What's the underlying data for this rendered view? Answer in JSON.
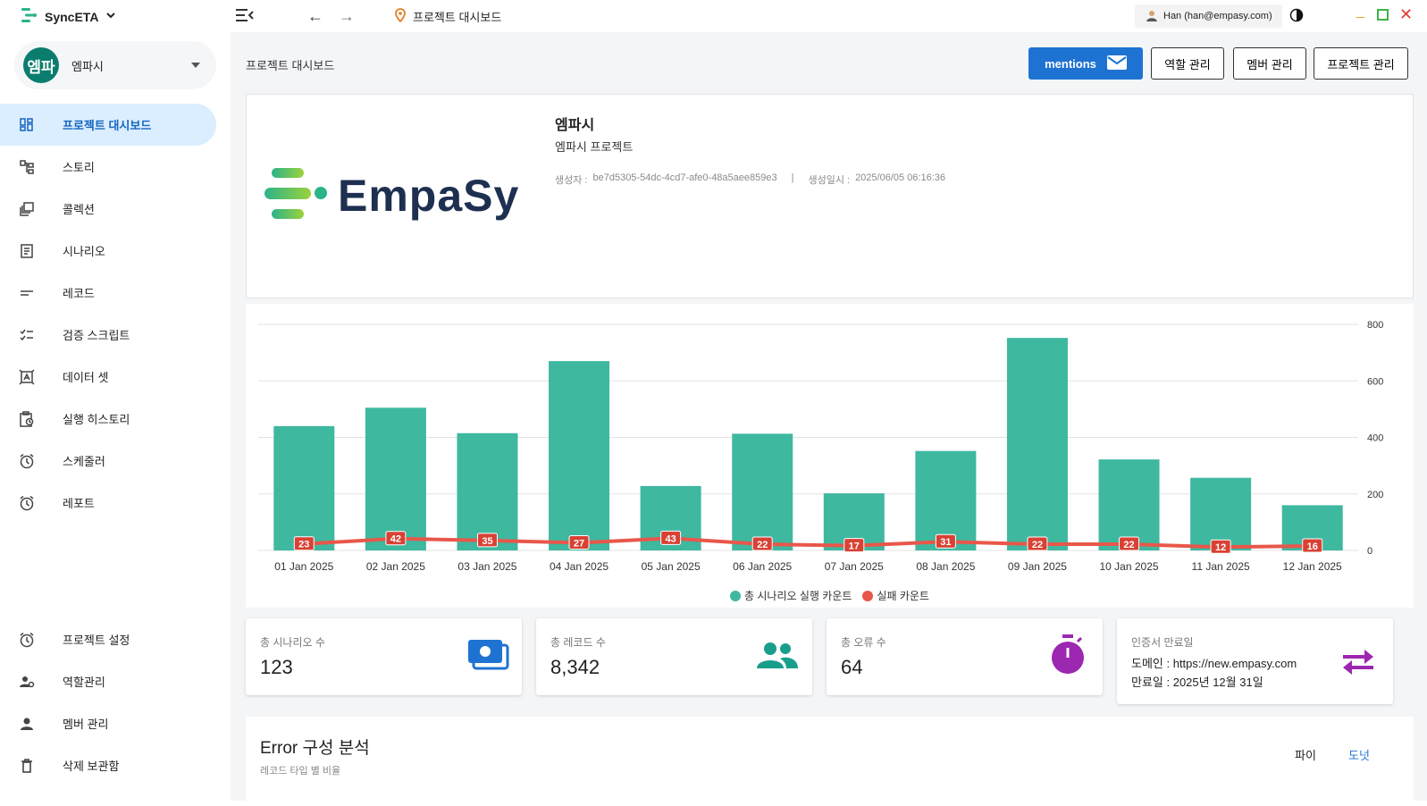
{
  "app": {
    "name": "SyncETA",
    "breadcrumb": "프로젝트 대시보드",
    "user": "Han (han@empasy.com)"
  },
  "sidebar": {
    "org_avatar": "엠파",
    "org_name": "엠파시",
    "items": [
      {
        "label": "프로젝트 대시보드",
        "icon": "dashboard-icon",
        "active": true
      },
      {
        "label": "스토리",
        "icon": "story-icon"
      },
      {
        "label": "콜렉션",
        "icon": "collection-icon"
      },
      {
        "label": "시나리오",
        "icon": "scenario-icon"
      },
      {
        "label": "레코드",
        "icon": "record-icon"
      },
      {
        "label": "검증 스크립트",
        "icon": "checklist-icon"
      },
      {
        "label": "데이터 셋",
        "icon": "dataset-icon"
      },
      {
        "label": "실행 히스토리",
        "icon": "history-icon"
      },
      {
        "label": "스케줄러",
        "icon": "alarm-icon"
      },
      {
        "label": "레포트",
        "icon": "alarm-icon"
      }
    ],
    "bottom_items": [
      {
        "label": "프로젝트 설정",
        "icon": "alarm-icon"
      },
      {
        "label": "역할관리",
        "icon": "role-icon"
      },
      {
        "label": "멤버 관리",
        "icon": "person-icon"
      },
      {
        "label": "삭제 보관함",
        "icon": "trash-icon"
      }
    ]
  },
  "main": {
    "page_title": "프로젝트 대시보드",
    "buttons": {
      "mentions": "mentions",
      "role": "역할 관리",
      "member": "멤버 관리",
      "project": "프로젝트 관리"
    },
    "project": {
      "logo_text": "EmpaSy",
      "name": "엠파시",
      "description": "엠파시 프로젝트",
      "creator_label": "생성자 :",
      "creator": "be7d5305-54dc-4cd7-afe0-48a5aee859e3",
      "separator": "|",
      "created_label": "생성일시 :",
      "created_at": "2025/06/05 06:16:36"
    },
    "stats": [
      {
        "label": "총 시나리오 수",
        "value": "123",
        "icon": "money-icon",
        "color": "#1e73d2"
      },
      {
        "label": "총 레코드 수",
        "value": "8,342",
        "icon": "people-icon",
        "color": "#1a9e8c"
      },
      {
        "label": "총 오류 수",
        "value": "64",
        "icon": "timer-icon",
        "color": "#9c27b0"
      }
    ],
    "cert": {
      "label": "인증서 만료일",
      "domain": "도메인 : https://new.empasy.com",
      "expiry": "만료일 : 2025년 12월 31일",
      "icon": "swap-icon",
      "color": "#9c27b0"
    },
    "error_section": {
      "title": "Error 구성 분석",
      "subtitle": "레코드 타입 별 비율",
      "tab_pie": "파이",
      "tab_donut": "도넛"
    }
  },
  "chart_data": {
    "type": "bar",
    "categories": [
      "01 Jan 2025",
      "02 Jan 2025",
      "03 Jan 2025",
      "04 Jan 2025",
      "05 Jan 2025",
      "06 Jan 2025",
      "07 Jan 2025",
      "08 Jan 2025",
      "09 Jan 2025",
      "10 Jan 2025",
      "11 Jan 2025",
      "12 Jan 2025"
    ],
    "series": [
      {
        "name": "총 시나리오 실행 카운트",
        "type": "bar",
        "color": "#3fb8a0",
        "values": [
          440,
          505,
          415,
          670,
          228,
          413,
          202,
          352,
          752,
          322,
          257,
          160
        ]
      },
      {
        "name": "실패 카운트",
        "type": "line",
        "color": "#e8574a",
        "values": [
          23,
          42,
          35,
          27,
          43,
          22,
          17,
          31,
          22,
          22,
          12,
          16
        ]
      }
    ],
    "yticks": [
      0,
      200,
      400,
      600,
      800
    ],
    "ylim": [
      0,
      800
    ],
    "grid": true,
    "legend": "bottom"
  }
}
